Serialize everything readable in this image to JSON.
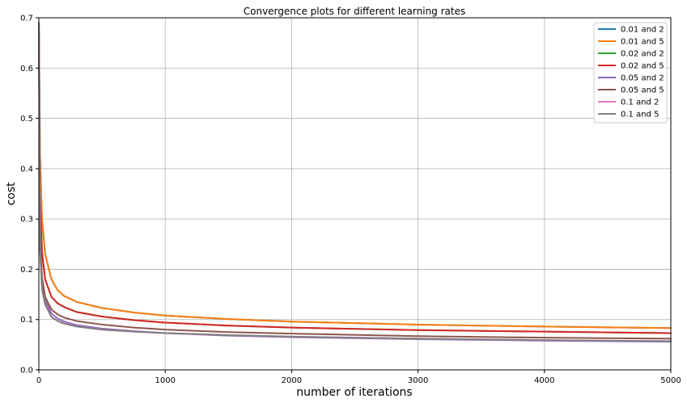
{
  "chart_data": {
    "type": "line",
    "title": "Convergence plots for different learning rates",
    "xlabel": "number of iterations",
    "ylabel": "cost",
    "xlim": [
      0,
      5000
    ],
    "ylim": [
      0.0,
      0.7
    ],
    "x_ticks": [
      "0",
      "1000",
      "2000",
      "3000",
      "4000",
      "5000"
    ],
    "y_ticks": [
      "0.0",
      "0.1",
      "0.2",
      "0.3",
      "0.4",
      "0.5",
      "0.6",
      "0.7"
    ],
    "grid": true,
    "legend_position": "top-right",
    "x": [
      0,
      10,
      25,
      50,
      100,
      150,
      200,
      300,
      500,
      750,
      1000,
      1500,
      2000,
      3000,
      4000,
      5000
    ],
    "series": [
      {
        "name": "0.01 and 2",
        "color": "#1f77b4",
        "values": [
          0.69,
          0.42,
          0.3,
          0.23,
          0.18,
          0.158,
          0.147,
          0.135,
          0.123,
          0.114,
          0.108,
          0.101,
          0.096,
          0.09,
          0.086,
          0.083
        ]
      },
      {
        "name": "0.01 and 5",
        "color": "#ff7f0e",
        "values": [
          0.69,
          0.42,
          0.3,
          0.23,
          0.18,
          0.158,
          0.147,
          0.135,
          0.123,
          0.114,
          0.108,
          0.101,
          0.096,
          0.09,
          0.086,
          0.083
        ]
      },
      {
        "name": "0.02 and 2",
        "color": "#2ca02c",
        "values": [
          0.69,
          0.34,
          0.235,
          0.18,
          0.145,
          0.132,
          0.125,
          0.115,
          0.106,
          0.099,
          0.094,
          0.088,
          0.084,
          0.079,
          0.076,
          0.073
        ]
      },
      {
        "name": "0.02 and 5",
        "color": "#d62728",
        "values": [
          0.69,
          0.34,
          0.235,
          0.18,
          0.145,
          0.132,
          0.125,
          0.115,
          0.106,
          0.099,
          0.094,
          0.088,
          0.084,
          0.079,
          0.076,
          0.073
        ]
      },
      {
        "name": "0.05 and 2",
        "color": "#9467bd",
        "values": [
          0.69,
          0.27,
          0.175,
          0.138,
          0.112,
          0.102,
          0.096,
          0.089,
          0.082,
          0.077,
          0.073,
          0.068,
          0.065,
          0.061,
          0.058,
          0.056
        ]
      },
      {
        "name": "0.05 and 5",
        "color": "#8c564b",
        "values": [
          0.69,
          0.28,
          0.185,
          0.145,
          0.12,
          0.11,
          0.104,
          0.097,
          0.09,
          0.084,
          0.08,
          0.075,
          0.072,
          0.067,
          0.064,
          0.062
        ]
      },
      {
        "name": "0.1 and 2",
        "color": "#e377c2",
        "values": [
          0.69,
          0.24,
          0.16,
          0.13,
          0.105,
          0.097,
          0.092,
          0.086,
          0.08,
          0.076,
          0.073,
          0.069,
          0.066,
          0.062,
          0.059,
          0.057
        ]
      },
      {
        "name": "0.1 and 5",
        "color": "#7f7f7f",
        "values": [
          0.69,
          0.24,
          0.16,
          0.13,
          0.105,
          0.097,
          0.092,
          0.086,
          0.08,
          0.076,
          0.073,
          0.069,
          0.066,
          0.062,
          0.059,
          0.057
        ]
      }
    ]
  }
}
